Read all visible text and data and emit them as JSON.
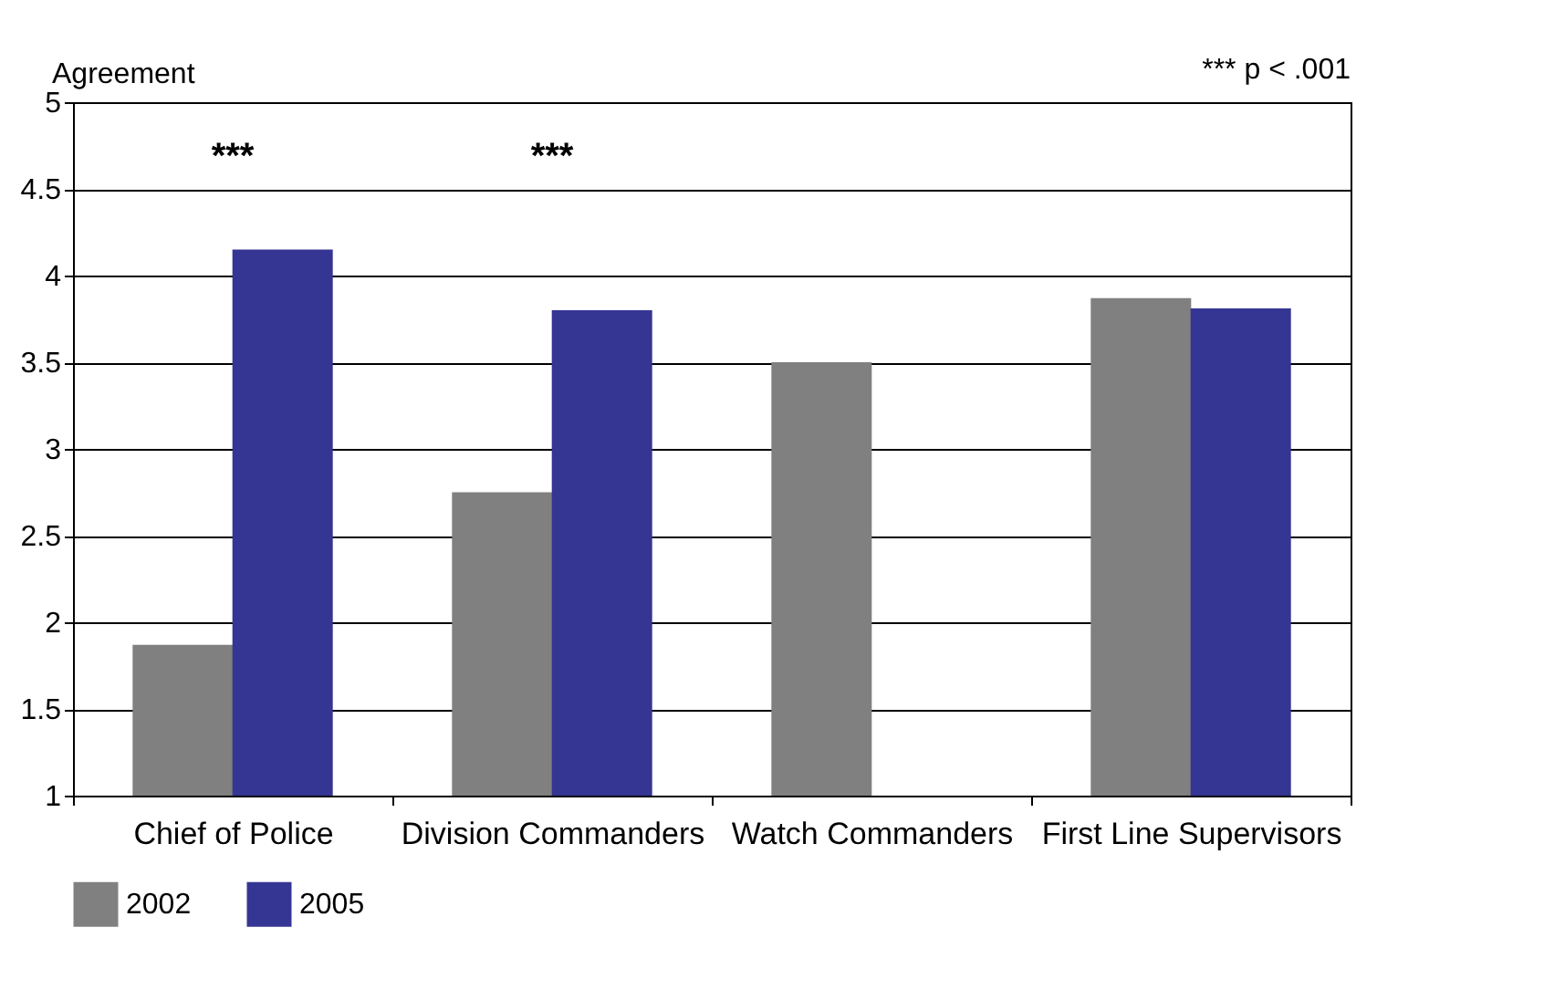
{
  "chart_data": {
    "type": "bar",
    "ylabel": "Agreement",
    "categories": [
      "Chief of Police",
      "Division Commanders",
      "Watch Commanders",
      "First Line Supervisors"
    ],
    "series": [
      {
        "name": "2002",
        "color": "#808080",
        "values": [
          1.87,
          2.75,
          3.5,
          3.87
        ]
      },
      {
        "name": "2005",
        "color": "#353594",
        "values": [
          4.15,
          3.8,
          null,
          3.81
        ]
      }
    ],
    "ylim": [
      1,
      5
    ],
    "yticks": [
      1,
      1.5,
      2,
      2.5,
      3,
      3.5,
      4,
      4.5,
      5
    ],
    "grid": "y",
    "legend": "bottom",
    "annotations": [
      "***",
      "***",
      "*** p < .001"
    ]
  }
}
